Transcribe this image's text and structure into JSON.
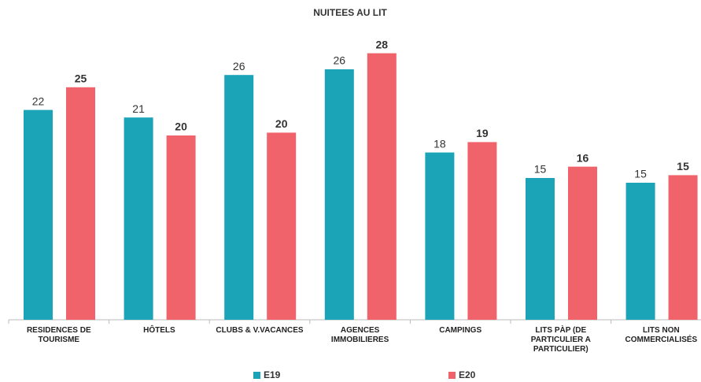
{
  "chart_data": {
    "type": "bar",
    "title": "NUITEES AU LIT",
    "categories": [
      "RESIDENCES DE TOURISME",
      "HÔTELS",
      "CLUBS & V.VACANCES",
      "AGENCES IMMOBILIERES",
      "CAMPINGS",
      "LITS PÀP (DE PARTICULIER A PARTICULIER)",
      "LITS NON COMMERCIALISÉS"
    ],
    "series": [
      {
        "name": "E19",
        "color": "#1ba3b8",
        "values": [
          22.2,
          21.4,
          25.9,
          26.5,
          17.7,
          15.0,
          14.5
        ],
        "value_labels": [
          "22",
          "21",
          "26",
          "26",
          "18",
          "15",
          "15"
        ]
      },
      {
        "name": "E20",
        "color": "#f0636a",
        "values": [
          24.6,
          19.5,
          19.8,
          28.2,
          18.8,
          16.2,
          15.3
        ],
        "value_labels": [
          "25",
          "20",
          "20",
          "28",
          "19",
          "16",
          "15"
        ]
      }
    ],
    "ylim": [
      0,
      30
    ]
  }
}
